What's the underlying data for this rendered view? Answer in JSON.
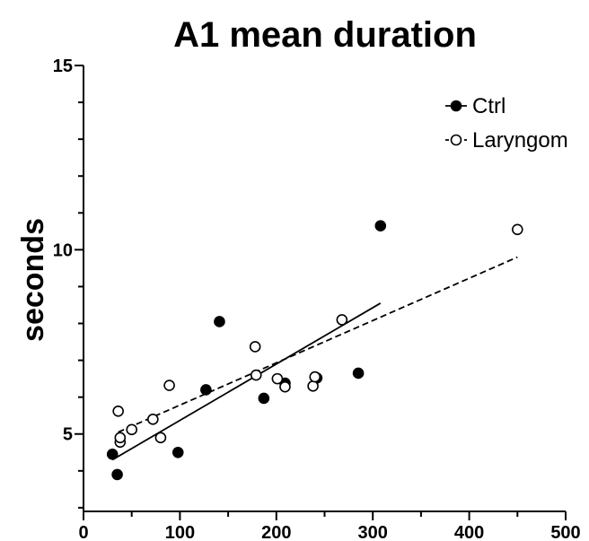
{
  "chart_data": {
    "type": "scatter",
    "title": "A1 mean duration",
    "xlabel": "",
    "ylabel": "seconds",
    "xlim": [
      0,
      500
    ],
    "ylim": [
      2.9,
      15
    ],
    "xticks": [
      0,
      100,
      200,
      300,
      400,
      500
    ],
    "yticks": [
      5,
      10,
      15
    ],
    "x_minor_step": 50,
    "y_minor_step": 1,
    "grid": false,
    "legend_position": "top-right",
    "series": [
      {
        "name": "Ctrl",
        "marker": "filled-circle",
        "line_style": "solid",
        "color": "#000000",
        "points": [
          {
            "x": 30,
            "y": 4.45
          },
          {
            "x": 35,
            "y": 3.9
          },
          {
            "x": 98,
            "y": 4.5
          },
          {
            "x": 127,
            "y": 6.2
          },
          {
            "x": 141,
            "y": 8.05
          },
          {
            "x": 187,
            "y": 5.97
          },
          {
            "x": 209,
            "y": 6.38
          },
          {
            "x": 242,
            "y": 6.52
          },
          {
            "x": 285,
            "y": 6.65
          },
          {
            "x": 308,
            "y": 10.65
          }
        ],
        "fit": {
          "x": [
            30,
            308
          ],
          "y": [
            4.3,
            8.55
          ]
        }
      },
      {
        "name": "Laryngom",
        "marker": "open-circle",
        "line_style": "dashed",
        "color": "#000000",
        "points": [
          {
            "x": 36,
            "y": 5.62
          },
          {
            "x": 38,
            "y": 4.78
          },
          {
            "x": 38,
            "y": 4.9
          },
          {
            "x": 50,
            "y": 5.12
          },
          {
            "x": 72,
            "y": 5.4
          },
          {
            "x": 80,
            "y": 4.9
          },
          {
            "x": 89,
            "y": 6.32
          },
          {
            "x": 178,
            "y": 7.37
          },
          {
            "x": 179,
            "y": 6.6
          },
          {
            "x": 201,
            "y": 6.5
          },
          {
            "x": 209,
            "y": 6.28
          },
          {
            "x": 238,
            "y": 6.3
          },
          {
            "x": 240,
            "y": 6.55
          },
          {
            "x": 268,
            "y": 8.1
          },
          {
            "x": 450,
            "y": 10.55
          }
        ],
        "fit": {
          "x": [
            36,
            450
          ],
          "y": [
            5.05,
            9.8
          ]
        }
      }
    ]
  }
}
